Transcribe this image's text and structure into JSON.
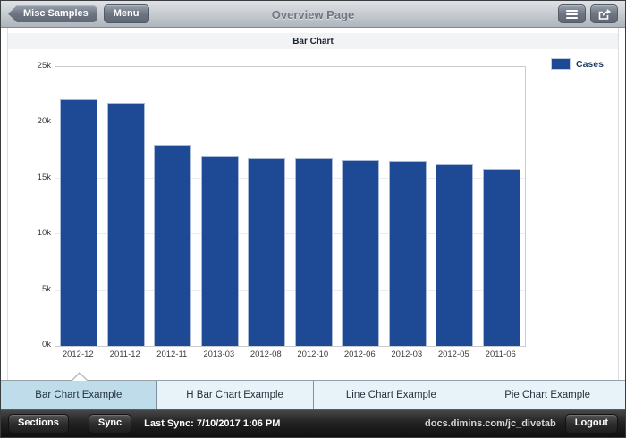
{
  "header": {
    "back_button_label": "Misc Samples",
    "menu_button_label": "Menu",
    "title": "Overview Page"
  },
  "subheader": {
    "title": "Bar Chart"
  },
  "chart_data": {
    "type": "bar",
    "title": "Bar Chart",
    "categories": [
      "2012-12",
      "2011-12",
      "2012-11",
      "2013-03",
      "2012-08",
      "2012-10",
      "2012-06",
      "2012-03",
      "2012-05",
      "2011-06"
    ],
    "series": [
      {
        "name": "Cases",
        "values": [
          22100,
          21800,
          18000,
          17000,
          16800,
          16800,
          16700,
          16600,
          16300,
          15900
        ]
      }
    ],
    "xlabel": "",
    "ylabel": "",
    "ylim": [
      0,
      25000
    ],
    "yticks": [
      {
        "label": "0k",
        "value": 0
      },
      {
        "label": "5k",
        "value": 5000
      },
      {
        "label": "10k",
        "value": 10000
      },
      {
        "label": "15k",
        "value": 15000
      },
      {
        "label": "20k",
        "value": 20000
      },
      {
        "label": "25k",
        "value": 25000
      }
    ],
    "grid": true,
    "legend": {
      "label": "Cases",
      "position": "top-right"
    },
    "bar_color": "#1e4a95"
  },
  "tabs": [
    {
      "label": "Bar Chart Example",
      "active": true
    },
    {
      "label": "H Bar Chart Example",
      "active": false
    },
    {
      "label": "Line Chart Example",
      "active": false
    },
    {
      "label": "Pie Chart Example",
      "active": false
    }
  ],
  "footer": {
    "sections_button_label": "Sections",
    "sync_button_label": "Sync",
    "last_sync": "Last Sync: 7/10/2017 1:06 PM",
    "url_text": "docs.dimins.com/jc_divetab",
    "logout_button_label": "Logout"
  },
  "colors": {
    "bar": "#1e4a95",
    "tab_active_bg": "#bedcea",
    "tab_inactive_bg": "#e7f3f9",
    "header_title": "#6f7680"
  }
}
